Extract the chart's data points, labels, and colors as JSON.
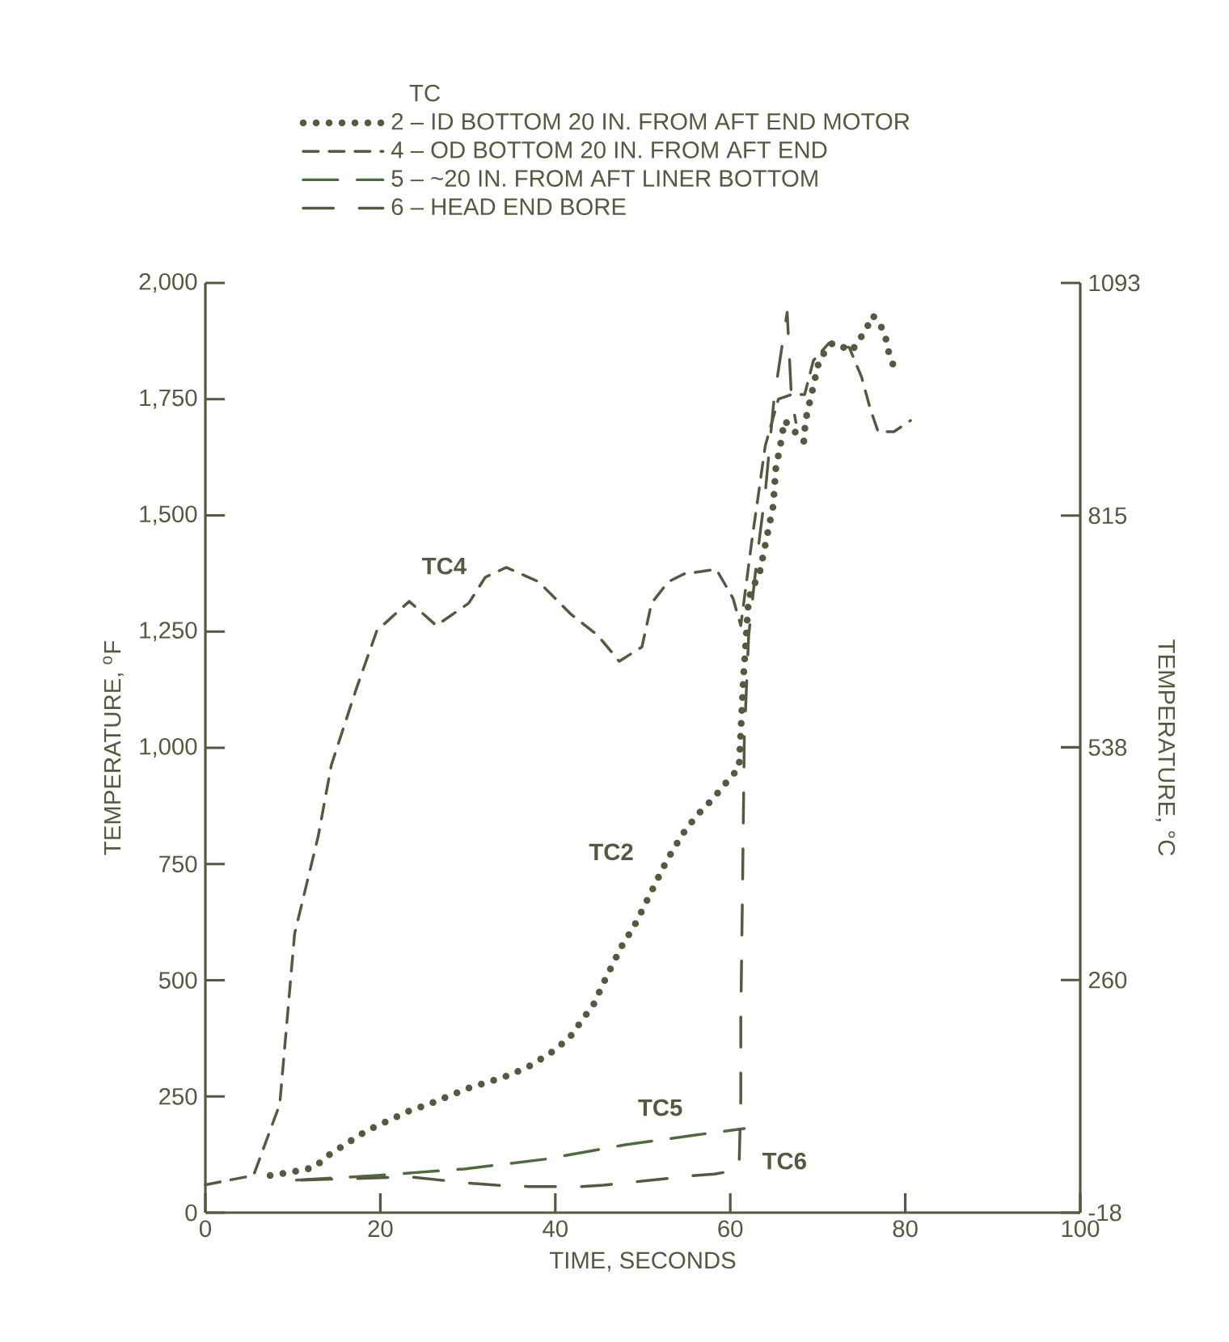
{
  "chart_data": {
    "type": "line",
    "xlabel": "TIME, SECONDS",
    "ylabel": "TEMPERATURE, $^{o}$F",
    "y2label": "TEMPERATURE, °C",
    "legend_title": "TC",
    "legend": "top",
    "grid": false,
    "xlim": [
      0,
      100
    ],
    "xticks": [
      0,
      20,
      40,
      60,
      80,
      100
    ],
    "ylim": [
      0,
      2000
    ],
    "yticks": [
      0,
      250,
      500,
      750,
      {
        "value": 1000,
        "label": "1,000"
      },
      {
        "value": 1250,
        "label": "1,250"
      },
      {
        "value": 1500,
        "label": "1,500"
      },
      {
        "value": 1750,
        "label": "1,750"
      },
      {
        "value": 2000,
        "label": "2,000"
      }
    ],
    "y2lim": [
      -18,
      1093
    ],
    "y2ticks": [
      -18,
      260,
      538,
      815,
      1093
    ],
    "series": [
      {
        "name": "2 – ID BOTTOM 20 IN. FROM AFT END MOTOR",
        "color": "#55593f",
        "line_style": "dotted",
        "x": [
          7.4,
          9.8,
          12.4,
          14.2,
          16.5,
          18.5,
          20.9,
          23.3,
          25.5,
          27.7,
          30.1,
          32.5,
          34.8,
          37.2,
          39.5,
          41.6,
          42.9,
          44.4,
          45.5,
          46.6,
          47.7,
          49,
          50.1,
          51.2,
          52.3,
          53.4,
          54.9,
          56.4,
          58,
          59.7,
          61,
          61.5,
          62.1,
          63.4,
          64,
          64.9,
          65.2,
          65.8,
          66.2,
          68.4,
          68.6,
          70.2,
          71.7,
          73.9,
          75.4,
          76.3,
          77.6,
          78.2,
          79.1
        ],
        "values": [
          80,
          87,
          97,
          125,
          153,
          177,
          198,
          219,
          233,
          250,
          268,
          282,
          296,
          317,
          344,
          376,
          410,
          449,
          494,
          536,
          577,
          616,
          657,
          699,
          741,
          779,
          824,
          859,
          890,
          929,
          957,
          1150,
          1322,
          1381,
          1437,
          1520,
          1600,
          1659,
          1704,
          1659,
          1704,
          1837,
          1871,
          1854,
          1896,
          1930,
          1896,
          1843,
          1802
        ]
      },
      {
        "name": "4 – OD BOTTOM 20 IN. FROM AFT END",
        "color": "#55593f",
        "line_style": "dashed",
        "x": [
          0,
          5.5,
          8.5,
          10.2,
          12.9,
          14.4,
          17.2,
          19.6,
          23.3,
          26.4,
          30.1,
          32,
          34.4,
          38.1,
          41.8,
          44.9,
          47.3,
          49.9,
          51,
          52.9,
          54.7,
          58.4,
          60.3,
          61.2,
          62.5,
          64,
          65.5,
          67,
          68.5,
          69.5,
          71.3,
          73.6,
          75,
          76,
          76.9,
          78.7,
          80.6
        ],
        "values": [
          60,
          80,
          233,
          600,
          810,
          963,
          1124,
          1252,
          1315,
          1263,
          1311,
          1367,
          1388,
          1357,
          1287,
          1241,
          1186,
          1217,
          1311,
          1357,
          1374,
          1384,
          1322,
          1263,
          1450,
          1650,
          1750,
          1760,
          1760,
          1833,
          1871,
          1861,
          1798,
          1729,
          1680,
          1680,
          1704
        ]
      },
      {
        "name": "5 – ~20 IN. FROM AFT LINER BOTTOM",
        "color": "#4f6a3e",
        "line_style": "long dashed",
        "x": [
          10.4,
          19.6,
          29.6,
          38.8,
          48,
          56,
          61.6
        ],
        "values": [
          70,
          80,
          94,
          115,
          146,
          167,
          181
        ]
      },
      {
        "name": "6 – HEAD END BORE",
        "color": "#55593f",
        "line_style": "dash dot",
        "x": [
          11,
          23.3,
          30.5,
          33.3,
          37,
          43,
          45.5,
          51,
          56,
          58.2,
          60.3,
          61,
          61.2,
          61.2,
          61.4,
          61.6,
          62.1,
          63,
          64,
          65,
          66.5,
          67,
          67.5
        ],
        "values": [
          70,
          77,
          63,
          59,
          56,
          56,
          59,
          70,
          80,
          83,
          90,
          95,
          243,
          417,
          700,
          1019,
          1241,
          1400,
          1550,
          1750,
          1937,
          1750,
          1700
        ]
      }
    ],
    "annotations": [
      {
        "text": "TC4",
        "x": 27.3,
        "y": 1391
      },
      {
        "text": "TC2",
        "x": 46.4,
        "y": 776
      },
      {
        "text": "TC5",
        "x": 52,
        "y": 226
      },
      {
        "text": "TC6",
        "x": 66.2,
        "y": 111
      }
    ]
  }
}
